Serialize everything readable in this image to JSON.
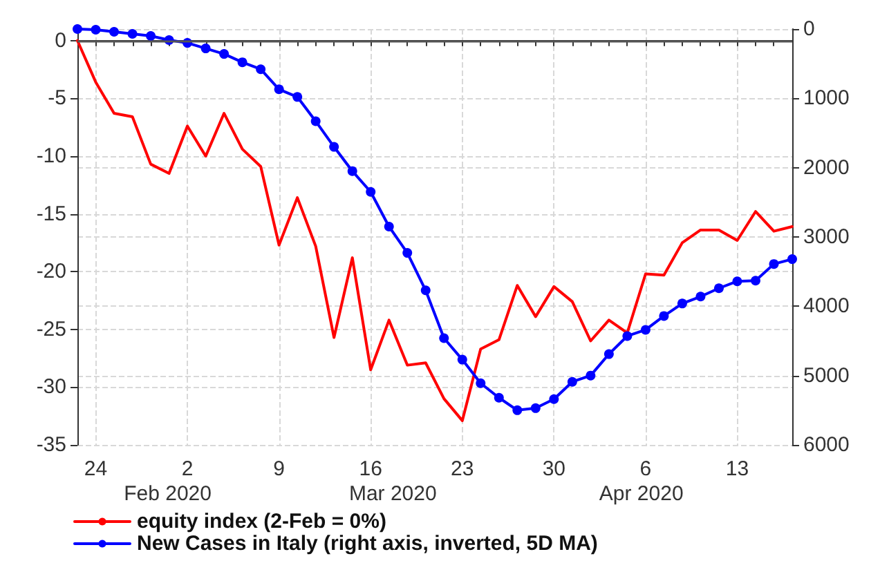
{
  "chart_data": {
    "type": "line",
    "categories": [
      null,
      "24",
      null,
      null,
      null,
      null,
      "2",
      null,
      null,
      null,
      null,
      "9",
      null,
      null,
      null,
      null,
      "16",
      null,
      null,
      null,
      null,
      "23",
      null,
      null,
      null,
      null,
      "30",
      null,
      null,
      null,
      null,
      "6",
      null,
      null,
      null,
      null,
      "13",
      null,
      null,
      null
    ],
    "series": [
      {
        "name": "equity index (2-Feb = 0%)",
        "color": "#ff0000",
        "marker": "none",
        "values": [
          0,
          -3.6,
          -6.3,
          -6.6,
          -10.7,
          -11.5,
          -7.4,
          -10.0,
          -6.3,
          -9.4,
          -10.9,
          -17.7,
          -13.6,
          -17.8,
          -25.7,
          -18.8,
          -28.5,
          -24.2,
          -28.1,
          -27.9,
          -31.0,
          -32.9,
          -26.7,
          -25.9,
          -21.2,
          -23.9,
          -21.3,
          -22.6,
          -26.0,
          -24.2,
          -25.3,
          -20.2,
          -20.3,
          -17.5,
          -16.4,
          -16.4,
          -17.3,
          -14.8,
          -16.5,
          -16.1
        ]
      },
      {
        "name": "New Cases in Italy (right axis, inverted, 5D MA)",
        "color": "#0000ff",
        "marker": "circle",
        "axis": "y2",
        "values": [
          0,
          10,
          40,
          70,
          100,
          160,
          200,
          280,
          360,
          480,
          580,
          870,
          980,
          1330,
          1700,
          2050,
          2350,
          2850,
          3230,
          3770,
          4460,
          4770,
          5110,
          5320,
          5500,
          5470,
          5340,
          5090,
          5000,
          4690,
          4430,
          4340,
          4140,
          3960,
          3860,
          3740,
          3640,
          3630,
          3390,
          3320
        ]
      }
    ],
    "ylim": [
      -35,
      1
    ],
    "yticks": [
      0,
      -5,
      -10,
      -15,
      -20,
      -25,
      -30,
      -35
    ],
    "y2lim": [
      6000,
      0
    ],
    "y2ticks": [
      0,
      1000,
      2000,
      3000,
      4000,
      5000,
      6000
    ],
    "ref_lines": [
      {
        "axis": "y",
        "value": 0,
        "color": "#555555"
      }
    ],
    "annotations": [
      "Feb 2020",
      "Mar 2020",
      "Apr 2020"
    ],
    "grid": true,
    "legend": "bottom",
    "line_style": "solid"
  }
}
